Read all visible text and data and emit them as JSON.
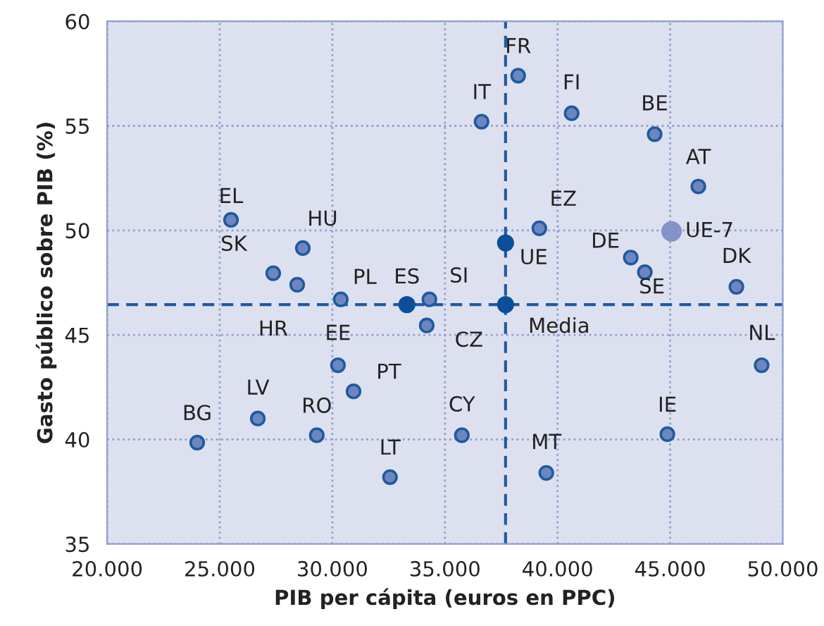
{
  "chart_data": {
    "type": "scatter",
    "xlabel": "PIB per cápita (euros en PPC)",
    "ylabel": "Gasto público sobre PIB (%)",
    "series": [
      {
        "color": "#6e86c0",
        "x": [
          25500,
          28690,
          27375,
          28440,
          30375,
          34310,
          34190,
          30250,
          30940,
          26690,
          29310,
          24000,
          32560,
          35750,
          39500,
          44875,
          49060,
          47940,
          43875,
          43250,
          46250,
          44310,
          40625,
          38250,
          36625,
          39190
        ],
        "values": [
          50.5,
          49.15,
          47.95,
          47.4,
          46.7,
          46.7,
          45.45,
          43.55,
          42.3,
          41.0,
          40.2,
          39.85,
          38.2,
          40.2,
          38.4,
          40.25,
          43.55,
          47.3,
          48.0,
          48.7,
          52.1,
          54.6,
          55.6,
          57.4,
          55.2,
          50.1
        ]
      },
      {
        "color": "#0b4f9a",
        "x": [
          33310,
          37690,
          37690
        ],
        "values": [
          46.45,
          49.4,
          46.45
        ]
      },
      {
        "color": "#8393c9",
        "x": [
          45060
        ],
        "values": [
          49.95
        ]
      }
    ],
    "annotations": [
      {
        "text": "EL",
        "x": 25500,
        "y": 50.5
      },
      {
        "text": "HU",
        "x": 28690,
        "y": 49.15
      },
      {
        "text": "SK",
        "x": 27375,
        "y": 47.95
      },
      {
        "text": "HR",
        "x": 28440,
        "y": 47.4
      },
      {
        "text": "PL",
        "x": 30375,
        "y": 46.7
      },
      {
        "text": "SI",
        "x": 34310,
        "y": 46.7
      },
      {
        "text": "CZ",
        "x": 34190,
        "y": 45.45
      },
      {
        "text": "EE",
        "x": 30250,
        "y": 43.55
      },
      {
        "text": "PT",
        "x": 30940,
        "y": 42.3
      },
      {
        "text": "LV",
        "x": 26690,
        "y": 41.0
      },
      {
        "text": "RO",
        "x": 29310,
        "y": 40.2
      },
      {
        "text": "BG",
        "x": 24000,
        "y": 39.85
      },
      {
        "text": "LT",
        "x": 32560,
        "y": 38.2
      },
      {
        "text": "CY",
        "x": 35750,
        "y": 40.2
      },
      {
        "text": "MT",
        "x": 39500,
        "y": 38.4
      },
      {
        "text": "IE",
        "x": 44875,
        "y": 40.25
      },
      {
        "text": "NL",
        "x": 49060,
        "y": 43.55
      },
      {
        "text": "DK",
        "x": 47940,
        "y": 47.3
      },
      {
        "text": "SE",
        "x": 43875,
        "y": 48.0
      },
      {
        "text": "DE",
        "x": 43250,
        "y": 48.7
      },
      {
        "text": "AT",
        "x": 46250,
        "y": 52.1
      },
      {
        "text": "BE",
        "x": 44310,
        "y": 54.6
      },
      {
        "text": "FI",
        "x": 40625,
        "y": 55.6
      },
      {
        "text": "FR",
        "x": 38250,
        "y": 57.4
      },
      {
        "text": "IT",
        "x": 36625,
        "y": 55.2
      },
      {
        "text": "EZ",
        "x": 39190,
        "y": 50.1
      },
      {
        "text": "ES",
        "x": 33310,
        "y": 46.45
      },
      {
        "text": "UE",
        "x": 37690,
        "y": 49.4
      },
      {
        "text": "Media",
        "x": 37690,
        "y": 46.45
      },
      {
        "text": "UE-7",
        "x": 45060,
        "y": 49.95
      }
    ],
    "ref_lines": [
      {
        "axis": "x",
        "value": 37690,
        "color": "#1f5aa0",
        "line_style": "dashed"
      },
      {
        "axis": "y",
        "value": 46.45,
        "color": "#1f5aa0",
        "line_style": "dashed"
      }
    ],
    "xlim": [
      20000,
      50000
    ],
    "ylim": [
      35,
      60
    ],
    "xticks": [
      {
        "value": 20000,
        "label": "20.000"
      },
      {
        "value": 25000,
        "label": "25.000"
      },
      {
        "value": 30000,
        "label": "30.000"
      },
      {
        "value": 35000,
        "label": "35.000"
      },
      {
        "value": 40000,
        "label": "40.000"
      },
      {
        "value": 45000,
        "label": "45.000"
      },
      {
        "value": 50000,
        "label": "50.000"
      }
    ],
    "yticks": [
      35,
      40,
      45,
      50,
      55,
      60
    ],
    "grid": true,
    "marker": "circle"
  }
}
